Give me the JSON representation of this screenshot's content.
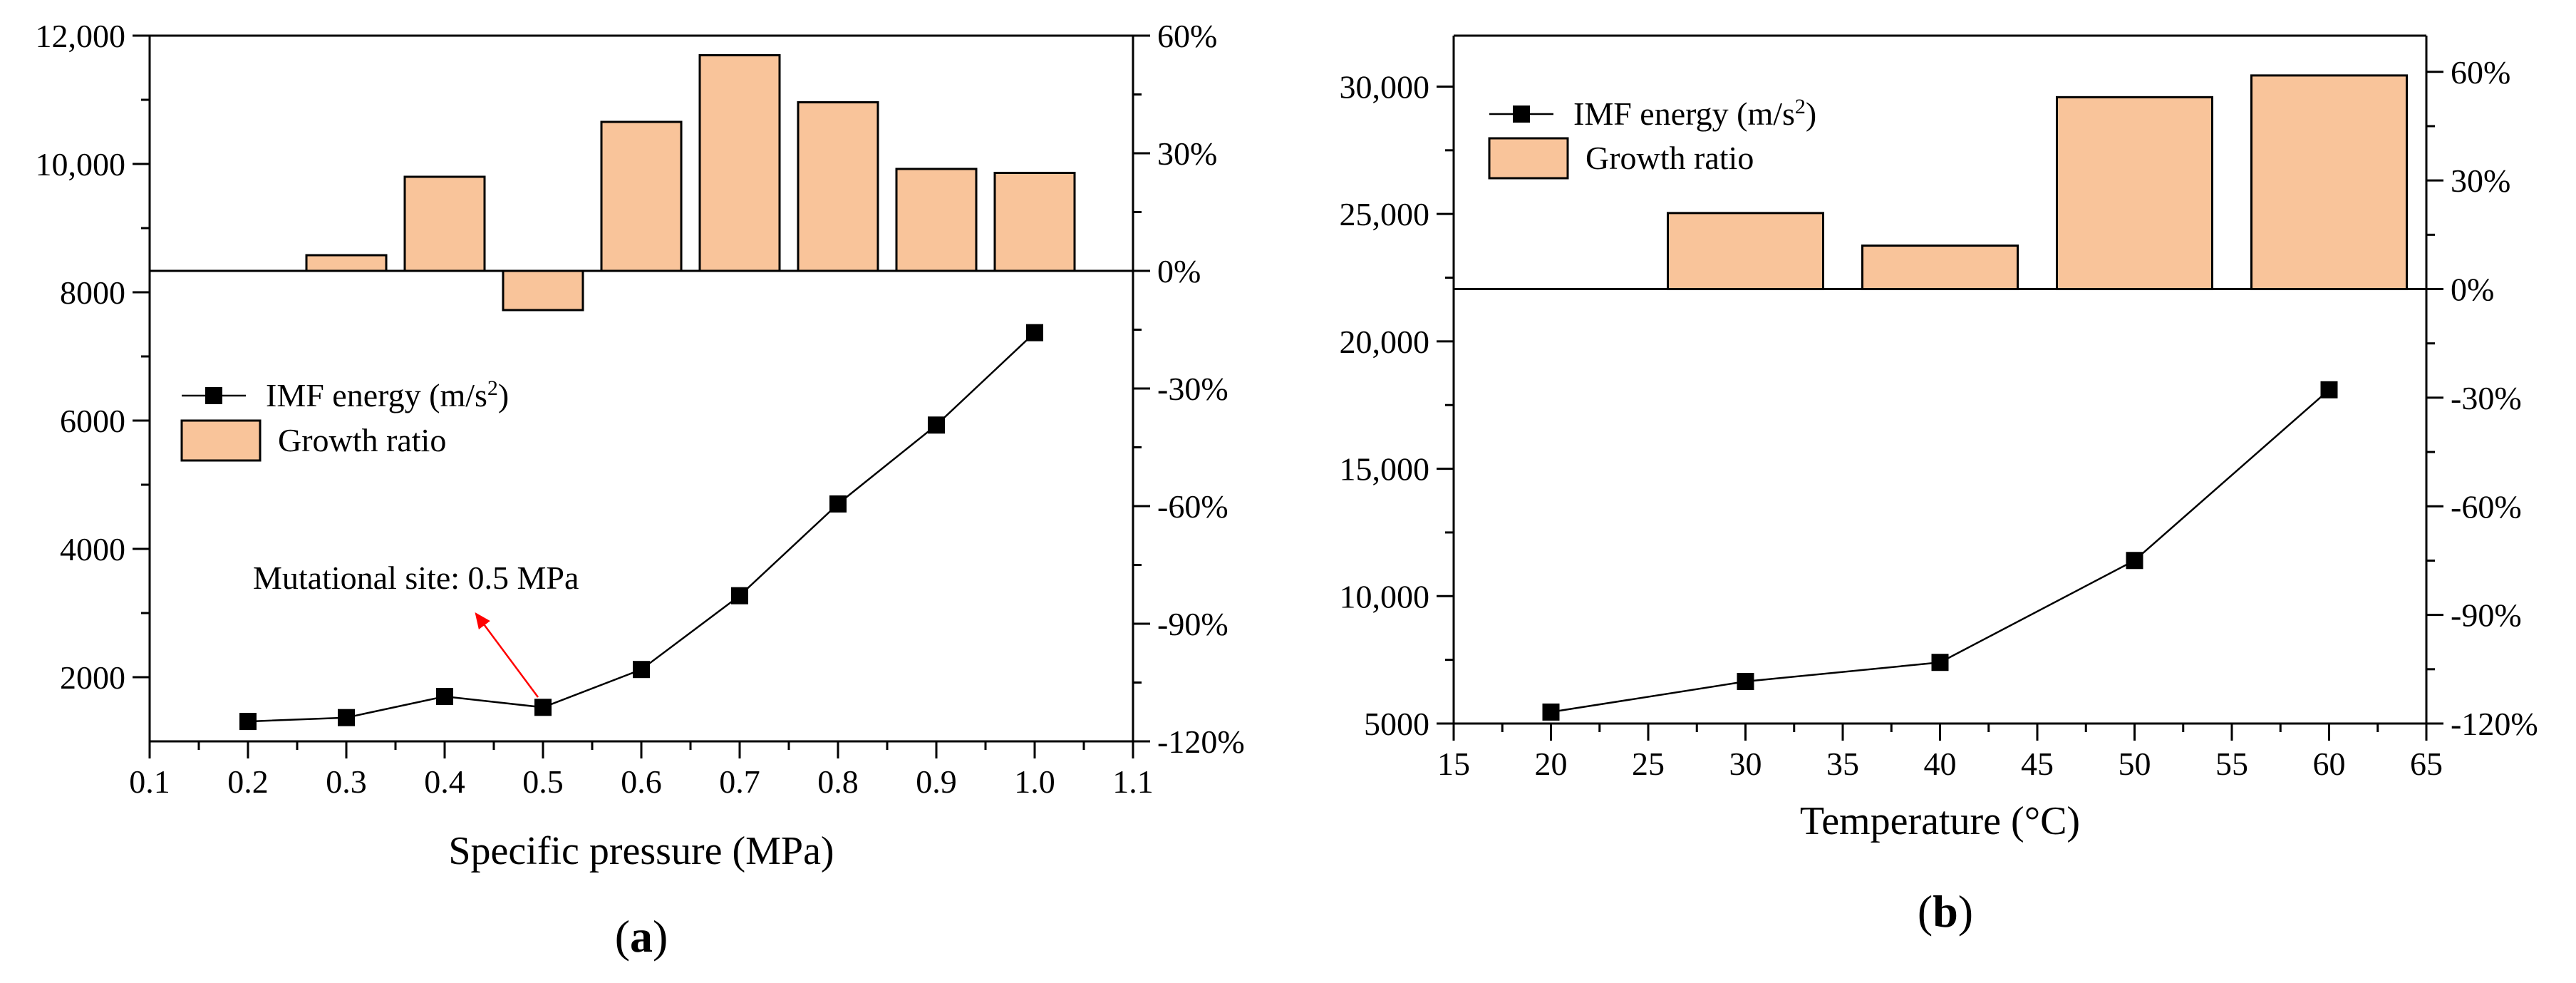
{
  "chart_data": [
    {
      "type": "line+bar",
      "panel_label": "a",
      "xlabel": "Specific pressure (MPa)",
      "xlim": [
        0.1,
        1.1
      ],
      "x_ticks": [
        0.1,
        0.2,
        0.3,
        0.4,
        0.5,
        0.6,
        0.7,
        0.8,
        0.9,
        1.0,
        1.1
      ],
      "x_tick_labels": [
        "0.1",
        "0.2",
        "0.3",
        "0.4",
        "0.5",
        "0.6",
        "0.7",
        "0.8",
        "0.9",
        "1.0",
        "1.1"
      ],
      "ylim_left": [
        1000,
        12000
      ],
      "y_left_ticks": [
        2000,
        4000,
        6000,
        8000,
        10000,
        12000
      ],
      "y_left_tick_labels": [
        "2000",
        "4000",
        "6000",
        "8000",
        "10,000",
        "12,000"
      ],
      "ylim_right": [
        -1.2,
        0.6
      ],
      "y_right_ticks": [
        -1.2,
        -0.9,
        -0.6,
        -0.3,
        0,
        0.3,
        0.6
      ],
      "y_right_tick_labels": [
        "-120%",
        "-90%",
        "-60%",
        "-30%",
        "0%",
        "30%",
        "60%"
      ],
      "series": [
        {
          "name": "IMF energy (m/s²)",
          "kind": "line",
          "x": [
            0.2,
            0.3,
            0.4,
            0.5,
            0.6,
            0.7,
            0.8,
            0.9,
            1.0
          ],
          "values": [
            1310,
            1370,
            1700,
            1530,
            2120,
            3270,
            4700,
            5930,
            7370
          ]
        },
        {
          "name": "Growth ratio",
          "kind": "bar",
          "x": [
            0.3,
            0.4,
            0.5,
            0.6,
            0.7,
            0.8,
            0.9,
            1.0
          ],
          "values": [
            0.04,
            0.24,
            -0.1,
            0.38,
            0.55,
            0.43,
            0.26,
            0.25
          ]
        }
      ],
      "legend": {
        "line_label": "IMF  energy (m/s",
        "line_sup": "2",
        "line_close": ")",
        "bar_label": "Growth ratio",
        "placement": "middle-left"
      },
      "annotation": {
        "text": "Mutational site: 0.5 MPa",
        "points_to_x": 0.5,
        "color": "#ff0000"
      }
    },
    {
      "type": "line+bar",
      "panel_label": "b",
      "xlabel": "Temperature (°C)",
      "xlim": [
        15,
        65
      ],
      "x_ticks": [
        15,
        20,
        25,
        30,
        35,
        40,
        45,
        50,
        55,
        60,
        65
      ],
      "x_tick_labels": [
        "15",
        "20",
        "25",
        "30",
        "35",
        "40",
        "45",
        "50",
        "55",
        "60",
        "65"
      ],
      "ylim_left": [
        5000,
        32000
      ],
      "y_left_ticks": [
        5000,
        10000,
        15000,
        20000,
        25000,
        30000
      ],
      "y_left_tick_labels": [
        "5000",
        "10,000",
        "15,000",
        "20,000",
        "25,000",
        "30,000"
      ],
      "ylim_right": [
        -1.2,
        0.7
      ],
      "y_right_ticks": [
        -1.2,
        -0.9,
        -0.6,
        -0.3,
        0,
        0.3,
        0.6
      ],
      "y_right_tick_labels": [
        "-120%",
        "-90%",
        "-60%",
        "-30%",
        "0%",
        "30%",
        "60%"
      ],
      "series": [
        {
          "name": "IMF energy (m/s²)",
          "kind": "line",
          "x": [
            20,
            30,
            40,
            50,
            60
          ],
          "values": [
            5450,
            6650,
            7400,
            11400,
            18100
          ]
        },
        {
          "name": "Growth ratio",
          "kind": "bar",
          "x": [
            30,
            40,
            50,
            60
          ],
          "values": [
            0.21,
            0.12,
            0.53,
            0.59
          ]
        }
      ],
      "legend": {
        "line_label": "IMF  energy (m/s",
        "line_sup": "2",
        "line_close": ")",
        "bar_label": "Growth ratio",
        "placement": "top-left"
      }
    }
  ],
  "colors": {
    "bar_fill": "#f9c49a",
    "line": "#000000",
    "annotation": "#ff0000"
  }
}
